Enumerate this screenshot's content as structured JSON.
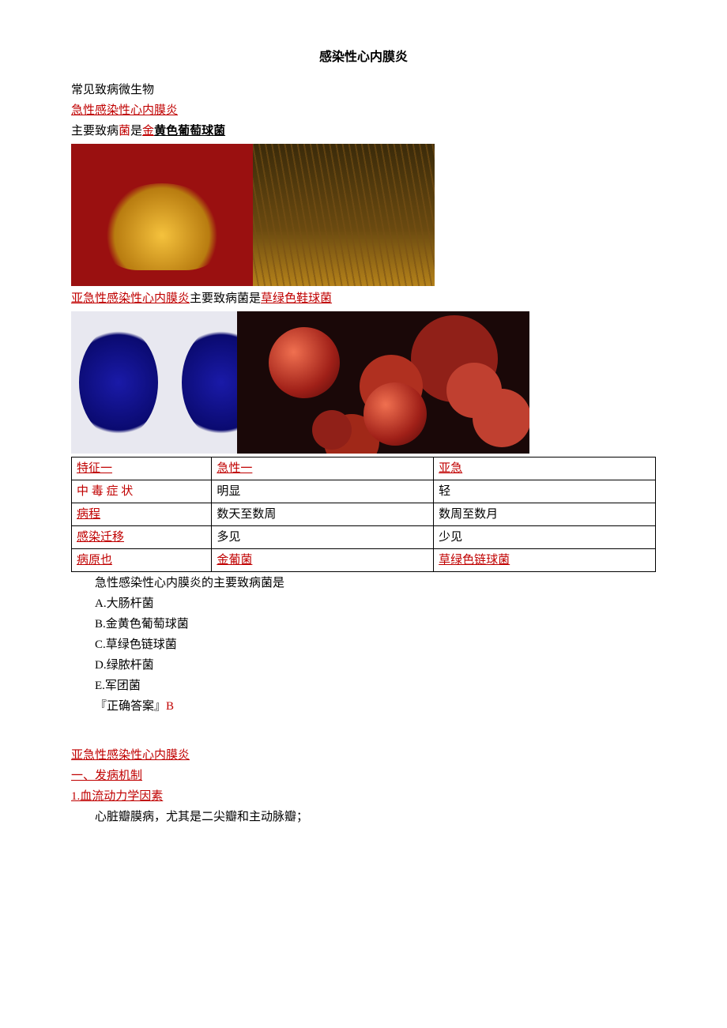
{
  "title": "感染性心内膜炎",
  "intro": "常见致病微生物",
  "acute_heading": "急性感染性心内膜炎",
  "acute_line_prefix": "主要致病",
  "acute_line_jun": "菌",
  "acute_line_shi": "是",
  "acute_line_jin": "金",
  "acute_line_rest": "黄色葡萄球菌",
  "images": {
    "gold_left_alt": "金元宝",
    "gold_right_alt": "金色麦田",
    "blue_alt": "蓝色球菌显微图",
    "red_alt": "红色球菌显微图"
  },
  "subacute_inline_head": "亚急性感染性心内膜炎",
  "subacute_inline_mid": "主要致病菌是",
  "subacute_inline_tail": "草绿色鞋球菌",
  "table": {
    "columns": [
      "c1",
      "c2",
      "c3"
    ],
    "col_widths": [
      "24%",
      "38%",
      "38%"
    ],
    "border_color": "#000000",
    "rows": [
      {
        "c1": {
          "text": "特征一",
          "red": true,
          "ul": true
        },
        "c2": {
          "text": "急性一",
          "red": true,
          "ul": true
        },
        "c3": {
          "text": "亚急",
          "red": true,
          "ul": true
        }
      },
      {
        "c1": {
          "text": "中毒症状",
          "red": true,
          "ul": false,
          "spaced": true
        },
        "c2": {
          "text": "明显"
        },
        "c3": {
          "text": "轻"
        }
      },
      {
        "c1": {
          "text": "病程",
          "red": true,
          "ul": true
        },
        "c2": {
          "text": "数天至数周"
        },
        "c3": {
          "text": "数周至数月"
        }
      },
      {
        "c1": {
          "text": "感染迁移",
          "red": true,
          "ul": true
        },
        "c2": {
          "text": "多见"
        },
        "c3": {
          "text": "少见"
        }
      },
      {
        "c1": {
          "text": "病原也",
          "red": true,
          "ul": true
        },
        "c2": {
          "text": "金葡菌",
          "red": true,
          "ul": true
        },
        "c3": {
          "text": "草绿色链球菌",
          "red": true,
          "ul": true
        }
      }
    ]
  },
  "question": {
    "stem": "急性感染性心内膜炎的主要致病菌是",
    "options": {
      "A": "A.大肠杆菌",
      "B": "B.金黄色葡萄球菌",
      "C": "C.草绿色链球菌",
      "D": "D.绿脓杆菌",
      "E": "E.军团菌"
    },
    "answer_label": "『正确答案』",
    "answer_value": "B"
  },
  "section2": {
    "h1": "亚急性感染性心内膜炎",
    "h2": "一、发病机制",
    "h3": "1.血流动力学因素",
    "p1": "心脏瓣膜病，尤其是二尖瓣和主动脉瓣；"
  },
  "colors": {
    "red": "#c00000",
    "text": "#000000",
    "background": "#ffffff"
  }
}
